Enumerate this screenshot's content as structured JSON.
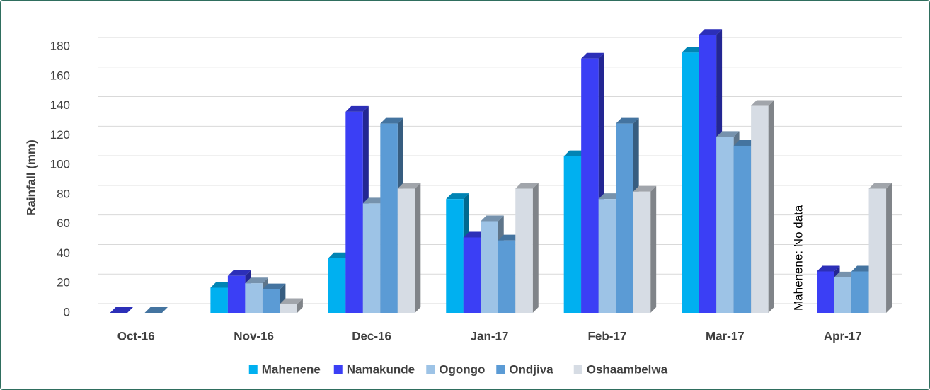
{
  "chart_data": {
    "type": "bar",
    "y_label": "Rainfall (mm)",
    "categories": [
      "Oct-16",
      "Nov-16",
      "Dec-16",
      "Jan-17",
      "Feb-17",
      "Mar-17",
      "Apr-17"
    ],
    "series": [
      {
        "name": "Mahenene",
        "color": "#00b0f0",
        "values": [
          null,
          17,
          37,
          77,
          106,
          176,
          null
        ]
      },
      {
        "name": "Namakunde",
        "color": "#3b3ff5",
        "values": [
          0,
          25,
          136,
          51,
          172,
          188,
          28
        ]
      },
      {
        "name": "Ogongo",
        "color": "#9dc3e6",
        "values": [
          null,
          20,
          74,
          62,
          77,
          119,
          24
        ]
      },
      {
        "name": "Ondjiva",
        "color": "#5b9bd5",
        "values": [
          0,
          16,
          128,
          49,
          128,
          113,
          28
        ]
      },
      {
        "name": "Oshaambelwa",
        "color": "#d6dce4",
        "values": [
          null,
          6,
          84,
          84,
          82,
          140,
          84
        ]
      }
    ],
    "annotation": "Mahenene: No data",
    "ylim": [
      0,
      180
    ],
    "yticks": [
      0,
      20,
      40,
      60,
      80,
      100,
      120,
      140,
      160,
      180
    ],
    "grid": true
  }
}
